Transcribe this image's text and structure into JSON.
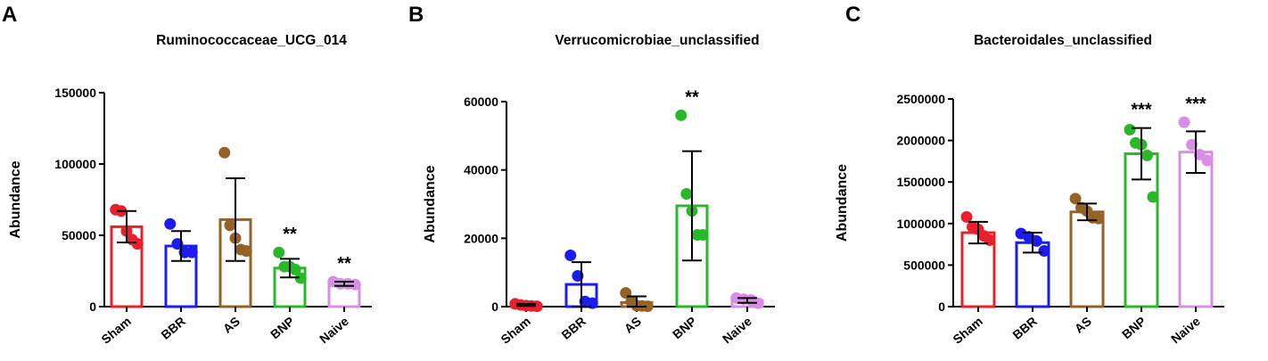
{
  "chart_data": [
    {
      "panel_label": "A",
      "type": "bar",
      "title": "Ruminococcaceae_UCG_014",
      "ylabel": "Abundance",
      "ylim": [
        0,
        150000
      ],
      "yticks": [
        0,
        50000,
        100000,
        150000
      ],
      "ytick_labels": [
        "0",
        "50000",
        "100000",
        "150000"
      ],
      "categories": [
        "Sham",
        "BBR",
        "AS",
        "BNP",
        "Naive"
      ],
      "colors": [
        "#e8202a",
        "#1c1cf0",
        "#956226",
        "#29b829",
        "#d98ee6"
      ],
      "means": [
        56000,
        42500,
        61000,
        27000,
        16000
      ],
      "errors": [
        11000,
        10500,
        29000,
        6500,
        1500
      ],
      "points": [
        [
          68000,
          67000,
          53000,
          47000,
          44000
        ],
        [
          58000,
          44000,
          38000,
          38000
        ],
        [
          108000,
          57000,
          48000,
          40000,
          39000
        ],
        [
          38000,
          28000,
          28000,
          26000,
          20000
        ],
        [
          17500,
          16000,
          16000,
          15500
        ]
      ],
      "significance": [
        "",
        "",
        "",
        "**",
        "**"
      ]
    },
    {
      "panel_label": "B",
      "type": "bar",
      "title": "Verrucomicrobiae_unclassified",
      "ylabel": "Abundance",
      "ylim": [
        0,
        60000
      ],
      "yticks": [
        0,
        20000,
        40000,
        60000
      ],
      "ytick_labels": [
        "0",
        "20000",
        "40000",
        "60000"
      ],
      "categories": [
        "Sham",
        "BBR",
        "AS",
        "BNP",
        "Naive"
      ],
      "colors": [
        "#e8202a",
        "#1c1cf0",
        "#956226",
        "#29b829",
        "#d98ee6"
      ],
      "means": [
        500,
        6500,
        1200,
        29500,
        1800
      ],
      "errors": [
        300,
        6500,
        1800,
        16000,
        700
      ],
      "points": [
        [
          800,
          500,
          300,
          200,
          100
        ],
        [
          15000,
          9000,
          1500,
          1000
        ],
        [
          4000,
          1500,
          300,
          200,
          100
        ],
        [
          56000,
          33000,
          28000,
          21000,
          21000
        ],
        [
          2500,
          2200,
          2000,
          1000
        ]
      ],
      "significance": [
        "",
        "",
        "",
        "**",
        ""
      ]
    },
    {
      "panel_label": "C",
      "type": "bar",
      "title": "Bacteroidales_unclassified",
      "ylabel": "Abundance",
      "ylim": [
        0,
        2500000
      ],
      "yticks": [
        0,
        500000,
        1000000,
        1500000,
        2000000,
        2500000
      ],
      "ytick_labels": [
        "0",
        "500000",
        "1000000",
        "1500000",
        "2000000",
        "2500000"
      ],
      "categories": [
        "Sham",
        "BBR",
        "AS",
        "BNP",
        "Naive"
      ],
      "colors": [
        "#e8202a",
        "#1c1cf0",
        "#956226",
        "#29b829",
        "#d98ee6"
      ],
      "means": [
        890000,
        770000,
        1140000,
        1840000,
        1860000
      ],
      "errors": [
        130000,
        120000,
        100000,
        310000,
        250000
      ],
      "points": [
        [
          1080000,
          960000,
          930000,
          850000,
          800000
        ],
        [
          880000,
          840000,
          790000,
          670000
        ],
        [
          1300000,
          1190000,
          1150000,
          1070000,
          1060000
        ],
        [
          2130000,
          1970000,
          1950000,
          1820000,
          1320000
        ],
        [
          2220000,
          1950000,
          1830000,
          1760000
        ]
      ],
      "significance": [
        "",
        "",
        "",
        "***",
        "***"
      ]
    }
  ]
}
